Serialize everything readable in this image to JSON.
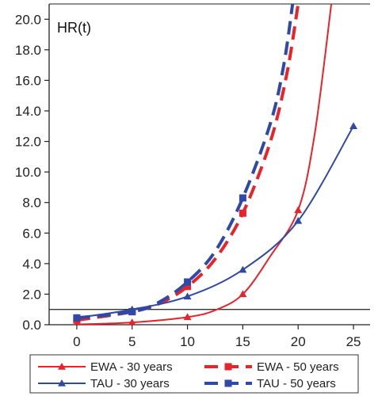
{
  "chart_data": {
    "type": "line",
    "title": "",
    "xlabel": "",
    "ylabel": "",
    "annotation": "HR(t)",
    "x_ticks": [
      "0",
      "5",
      "10",
      "15",
      "20",
      "25"
    ],
    "y_ticks": [
      "0.0",
      "2.0",
      "4.0",
      "6.0",
      "8.0",
      "10.0",
      "12.0",
      "14.0",
      "16.0",
      "18.0",
      "20.0"
    ],
    "xlim": [
      -2.5,
      26.5
    ],
    "ylim": [
      0,
      21
    ],
    "reference_line": 1.0,
    "grid": false,
    "legend_position": "bottom",
    "series": [
      {
        "name": "EWA - 30 years",
        "color": "#e8232a",
        "line_style": "solid",
        "marker": "triangle",
        "x": [
          0,
          5,
          10,
          12.5,
          15,
          17.5,
          20,
          21.5,
          23
        ],
        "y": [
          0.02,
          0.15,
          0.5,
          0.95,
          2.0,
          4.5,
          7.5,
          12.5,
          21.0
        ],
        "marker_x": [
          0,
          5,
          10,
          15,
          20
        ]
      },
      {
        "name": "EWA - 50 years",
        "color": "#e8232a",
        "line_style": "dashed",
        "marker": "square",
        "x": [
          0,
          5,
          7.5,
          10,
          12.5,
          15,
          17.5,
          19,
          20
        ],
        "y": [
          0.3,
          0.85,
          1.4,
          2.5,
          4.3,
          7.3,
          12.0,
          16.5,
          21.0
        ],
        "marker_x": [
          0,
          5,
          10,
          15
        ]
      },
      {
        "name": "TAU - 30 years",
        "color": "#2e49a8",
        "line_style": "solid",
        "marker": "triangle",
        "x": [
          0,
          5,
          10,
          15,
          20,
          25
        ],
        "y": [
          0.45,
          1.0,
          1.85,
          3.6,
          6.8,
          13.0
        ],
        "marker_x": [
          0,
          5,
          10,
          15,
          20,
          25
        ]
      },
      {
        "name": "TAU - 50 years",
        "color": "#2e49a8",
        "line_style": "dashed",
        "marker": "square",
        "x": [
          0,
          5,
          7.5,
          10,
          12.5,
          15,
          17.5,
          18.7,
          19.5
        ],
        "y": [
          0.45,
          0.85,
          1.5,
          2.8,
          4.8,
          8.3,
          13.2,
          17.0,
          21.0
        ],
        "marker_x": [
          0,
          5,
          10,
          15
        ]
      }
    ]
  }
}
